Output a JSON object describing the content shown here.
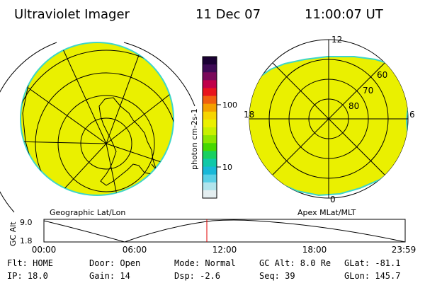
{
  "header": {
    "instrument": "Ultraviolet Imager",
    "date": "11 Dec 07",
    "time": "11:00:07 UT"
  },
  "colorbar": {
    "label": "photon cm-2s-1",
    "ticks": [
      "100",
      "10"
    ],
    "colors": [
      "#1a0033",
      "#3d0a55",
      "#7a0a5a",
      "#c0004a",
      "#e8141e",
      "#f06010",
      "#f4a000",
      "#f6d500",
      "#eaf000",
      "#c8f000",
      "#8ce600",
      "#46d800",
      "#18d060",
      "#10c8a8",
      "#18b8d8",
      "#5ad0e6",
      "#b0e4ec",
      "#e4eef0"
    ]
  },
  "left_panel": {
    "caption": "Geographic Lat/Lon",
    "fill_color": "#eaf000",
    "edge_color": "#3ed6c8"
  },
  "right_panel": {
    "caption": "Apex MLat/MLT",
    "lat_labels": [
      "60",
      "70",
      "80"
    ],
    "mlt_labels": [
      "12",
      "18",
      "6",
      "0"
    ],
    "fill_color": "#eaf000",
    "edge_color": "#3ed6c8"
  },
  "altitude_plot": {
    "ylabel": "GC Alt",
    "y_ticks": [
      "9.0",
      "1.8"
    ],
    "x_ticks": [
      "00:00",
      "06:00",
      "12:00",
      "18:00",
      "23:59"
    ],
    "marker_color": "#e00000"
  },
  "status": {
    "flt": "Flt: HOME",
    "ip": "IP: 18.0",
    "door": "Door: Open",
    "gain": "Gain: 14",
    "mode": "Mode: Normal",
    "dsp": "Dsp:    -2.6",
    "gc_alt": "GC Alt: 8.0 Re",
    "seq": "Seq: 39",
    "glat": "GLat: -81.1",
    "glon": "GLon: 145.7"
  }
}
